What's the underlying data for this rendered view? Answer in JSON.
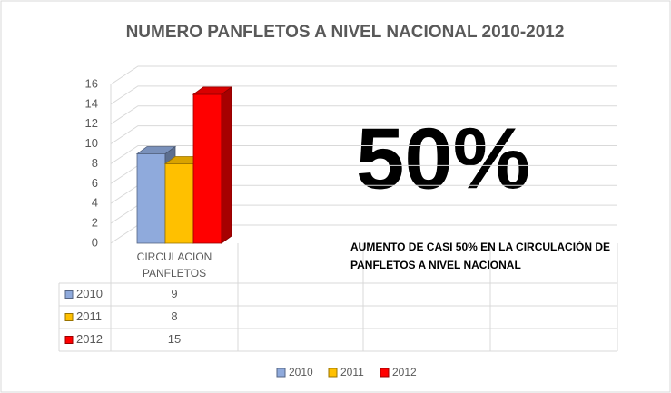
{
  "chart_data": {
    "type": "bar3d",
    "title": "NUMERO PANFLETOS A NIVEL NACIONAL 2010-2012",
    "categories": [
      "CIRCULACION PANFLETOS"
    ],
    "series": [
      {
        "name": "2010",
        "color": "#8faadc",
        "values": [
          9
        ]
      },
      {
        "name": "2011",
        "color": "#ffc000",
        "values": [
          8
        ]
      },
      {
        "name": "2012",
        "color": "#ff0000",
        "values": [
          15
        ]
      }
    ],
    "ylim": [
      0,
      16
    ],
    "yticks": [
      0,
      2,
      4,
      6,
      8,
      10,
      12,
      14,
      16
    ],
    "grid": true,
    "annotations": [
      "50%",
      "AUMENTO DE CASI 50% EN LA CIRCULACIÓN DE PANFLETOS A NIVEL NACIONAL"
    ],
    "legend": "bottom"
  }
}
